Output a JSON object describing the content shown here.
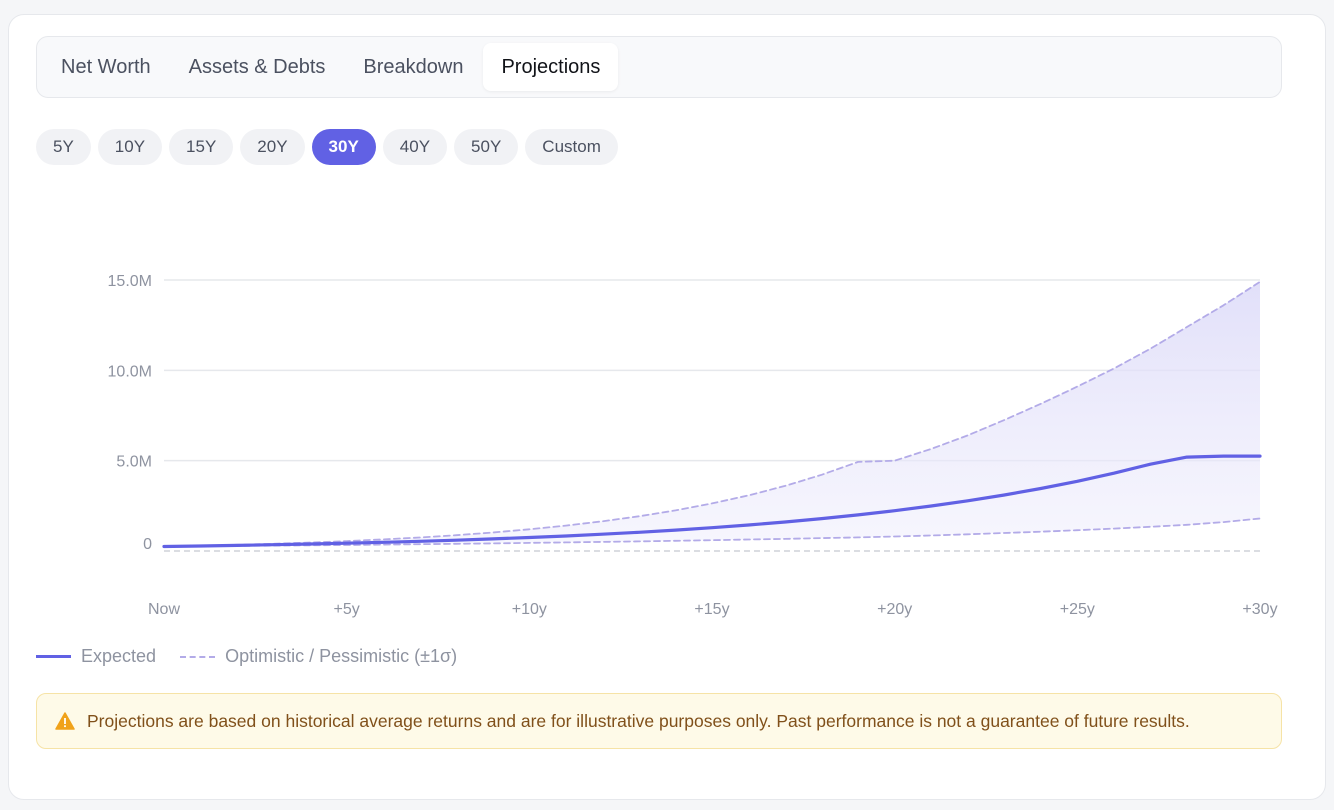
{
  "tabs": [
    {
      "label": "Net Worth",
      "active": false
    },
    {
      "label": "Assets & Debts",
      "active": false
    },
    {
      "label": "Breakdown",
      "active": false
    },
    {
      "label": "Projections",
      "active": true
    }
  ],
  "ranges": [
    {
      "label": "5Y",
      "active": false
    },
    {
      "label": "10Y",
      "active": false
    },
    {
      "label": "15Y",
      "active": false
    },
    {
      "label": "20Y",
      "active": false
    },
    {
      "label": "30Y",
      "active": true
    },
    {
      "label": "40Y",
      "active": false
    },
    {
      "label": "50Y",
      "active": false
    },
    {
      "label": "Custom",
      "active": false
    }
  ],
  "legend": {
    "expected": "Expected",
    "band": "Optimistic / Pessimistic (±1σ)"
  },
  "disclaimer": {
    "icon": "warning-triangle-icon",
    "text": "Projections are based on historical average returns and are for illustrative purposes only. Past performance is not a guarantee of future results."
  },
  "colors": {
    "accent": "#6161e4",
    "band": "#b3abe8",
    "zero": "#cfd2d8"
  },
  "chart_data": {
    "type": "area",
    "x": [
      0,
      1,
      2,
      3,
      4,
      5,
      6,
      7,
      8,
      9,
      10,
      11,
      12,
      13,
      14,
      15,
      16,
      17,
      18,
      19,
      20,
      21,
      22,
      23,
      24,
      25,
      26,
      27,
      28,
      29,
      30
    ],
    "x_tick_values": [
      0,
      5,
      10,
      15,
      20,
      25,
      30
    ],
    "x_tick_labels": [
      "Now",
      "+5y",
      "+10y",
      "+15y",
      "+20y",
      "+25y",
      "+30y"
    ],
    "y_tick_values": [
      0,
      5000000,
      10000000,
      15000000
    ],
    "y_tick_labels": [
      "0",
      "5.0M",
      "10.0M",
      "15.0M"
    ],
    "ylim": [
      0,
      15000000
    ],
    "grid": true,
    "legend_position": "bottom-left",
    "series": [
      {
        "name": "Expected",
        "style": "solid",
        "values": [
          250000,
          279000,
          311000,
          347000,
          387000,
          432000,
          482000,
          538000,
          600000,
          669000,
          747000,
          833000,
          930000,
          1037000,
          1157000,
          1291000,
          1440000,
          1607000,
          1793000,
          2000000,
          2232000,
          2490000,
          2778000,
          3100000,
          3459000,
          3859000,
          4306000,
          4804000,
          5200000,
          5250000,
          5250000
        ]
      },
      {
        "name": "Optimistic",
        "style": "dashed",
        "values": [
          250000,
          293000,
          342000,
          400000,
          468000,
          548000,
          641000,
          750000,
          877000,
          1026000,
          1200000,
          1405000,
          1643000,
          1923000,
          2250000,
          2632000,
          3080000,
          3604000,
          4216000,
          4933000,
          5000000,
          5650000,
          6400000,
          7250000,
          8150000,
          9100000,
          10100000,
          11200000,
          12400000,
          13600000,
          14900000
        ]
      },
      {
        "name": "Pessimistic",
        "style": "dashed",
        "values": [
          250000,
          265000,
          281000,
          298000,
          315000,
          334000,
          354000,
          375000,
          398000,
          422000,
          447000,
          474000,
          502000,
          532000,
          564000,
          598000,
          634000,
          672000,
          713000,
          755000,
          800000,
          860000,
          925000,
          995000,
          1070000,
          1150000,
          1240000,
          1340000,
          1450000,
          1600000,
          1800000
        ]
      }
    ]
  }
}
